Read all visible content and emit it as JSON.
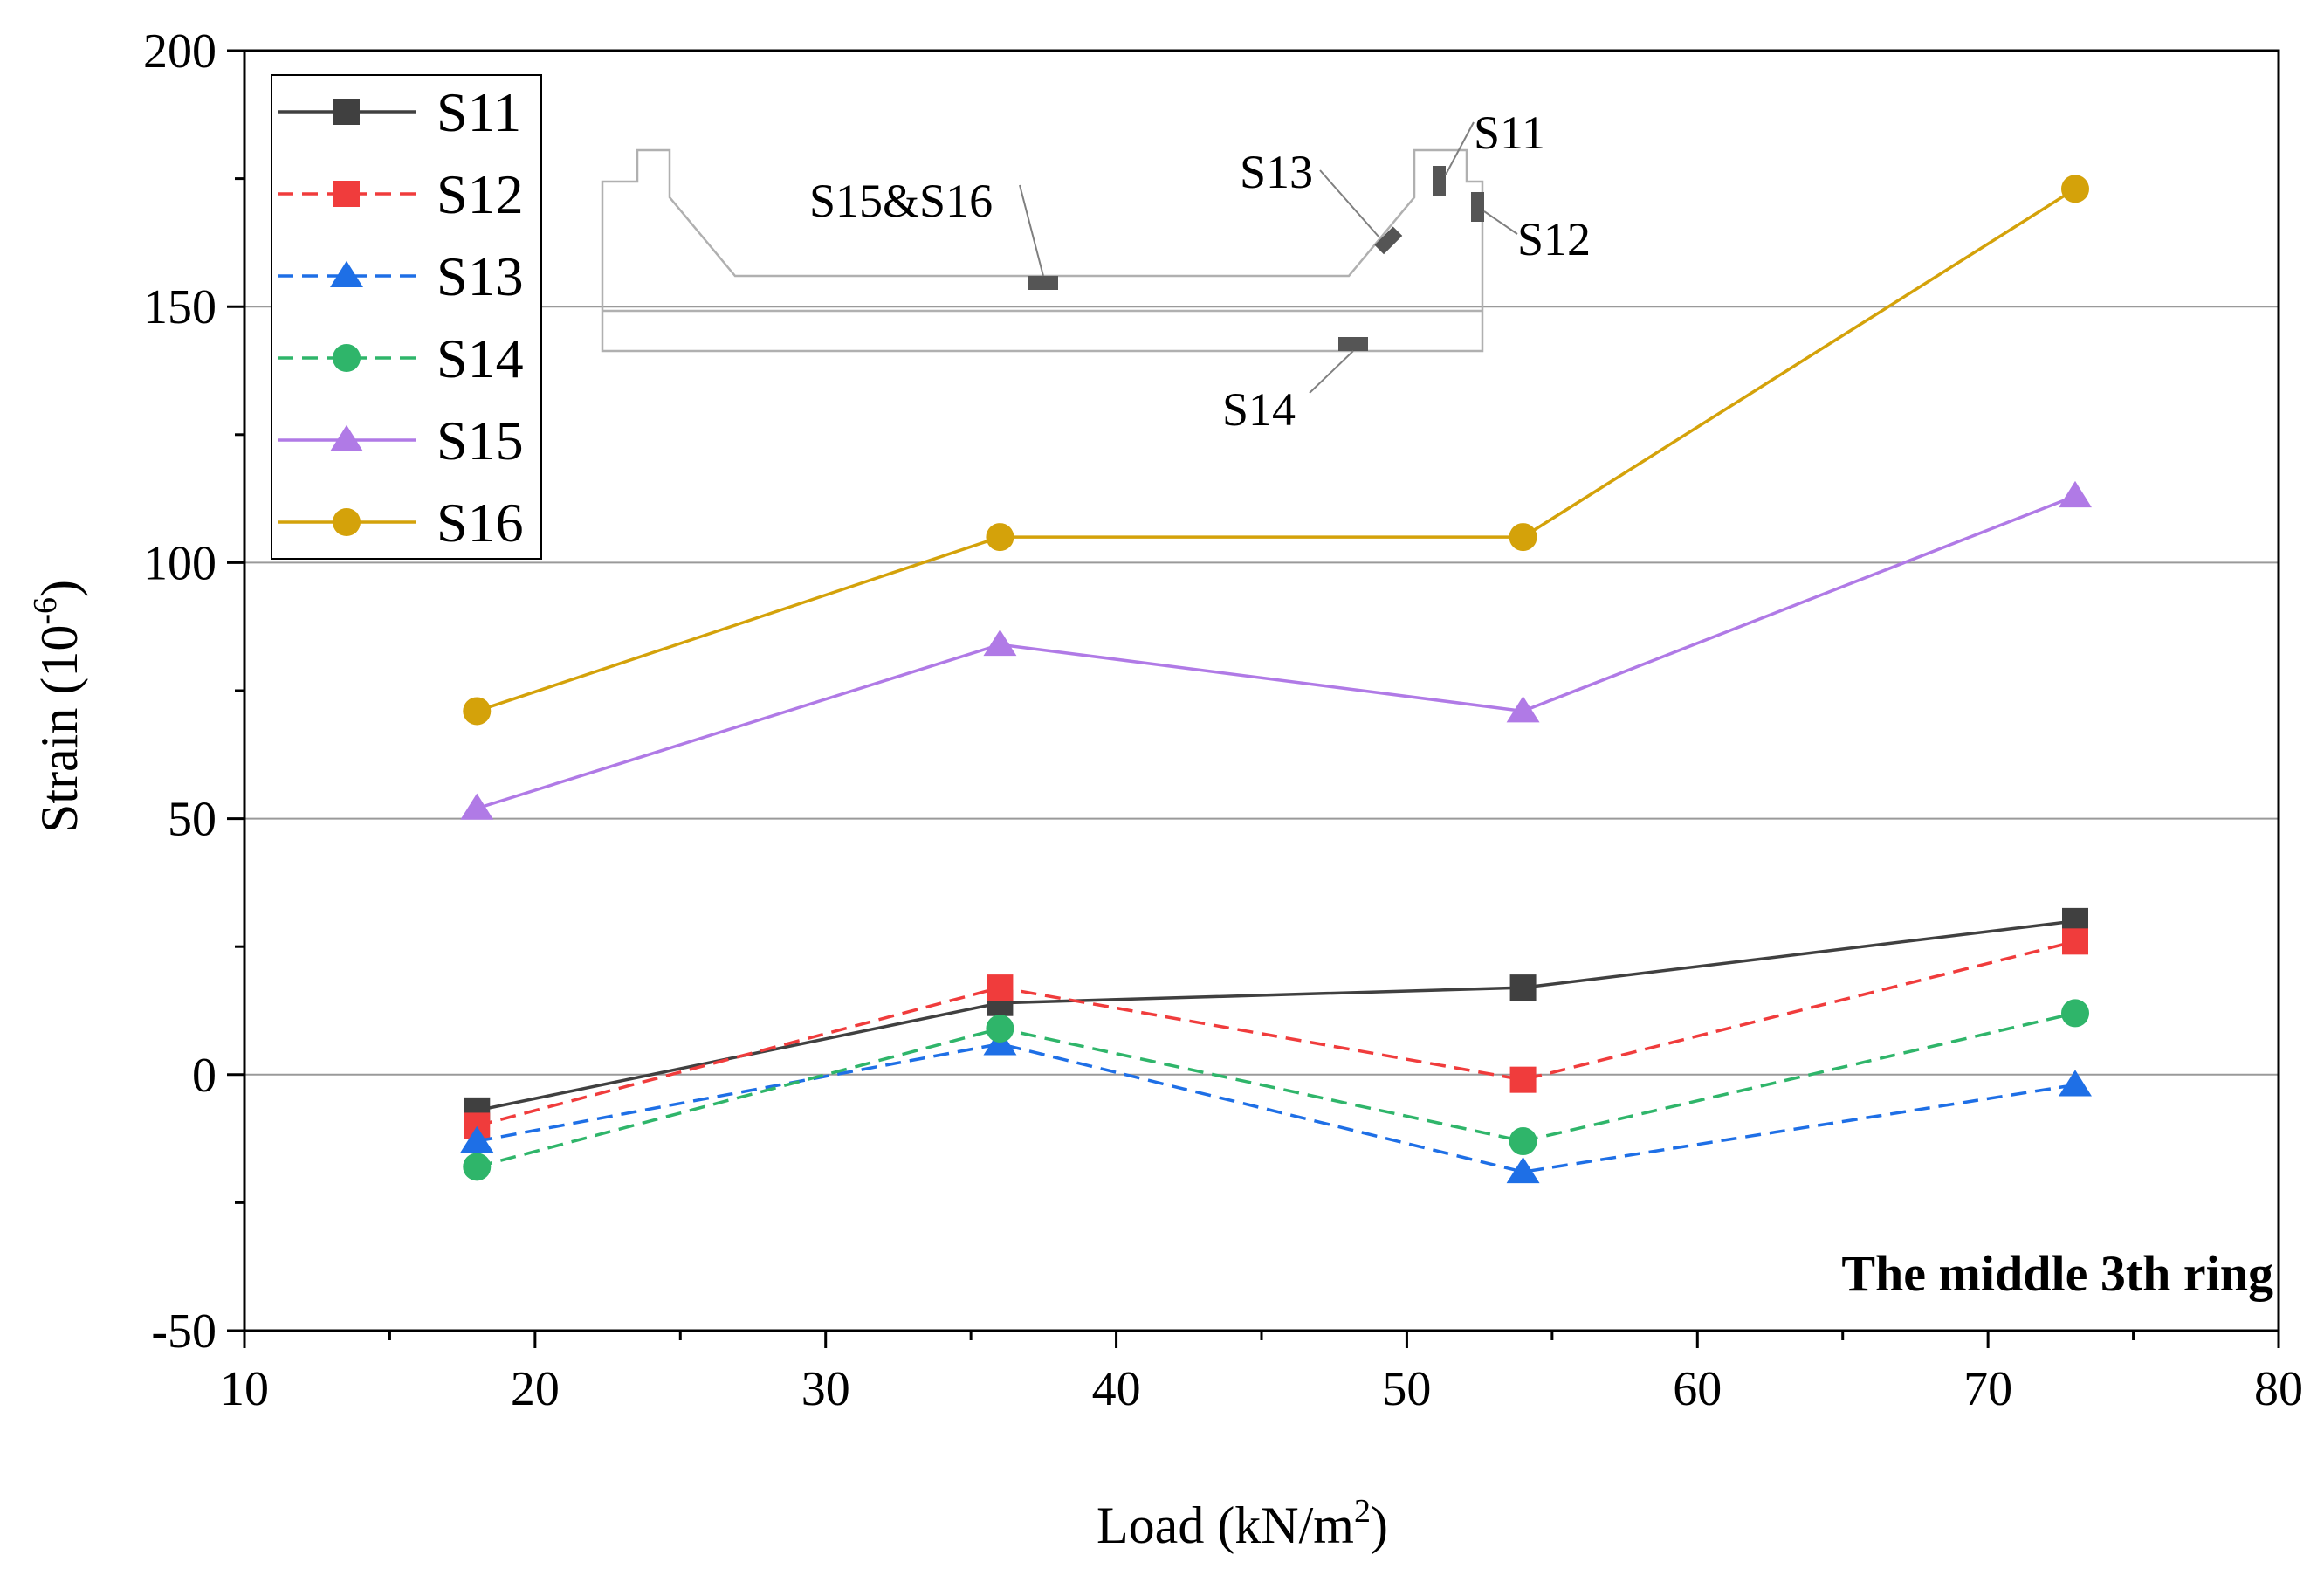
{
  "chart_data": {
    "type": "line",
    "title": "",
    "xlabel": "Load (kN/m",
    "xlabel_sup": "2",
    "xlabel_end": ")",
    "ylabel": "Strain (10",
    "ylabel_sup": "-6",
    "ylabel_end": ")",
    "xlim": [
      10,
      80
    ],
    "ylim": [
      -50,
      200
    ],
    "xticks": [
      10,
      20,
      30,
      40,
      50,
      60,
      70,
      80
    ],
    "yticks": [
      -50,
      0,
      50,
      100,
      150,
      200
    ],
    "gridlines_y": [
      0,
      50,
      100,
      150
    ],
    "annotation": "The middle 3th ring",
    "legend_position": "top-left",
    "x": [
      18,
      36,
      54,
      73
    ],
    "series": [
      {
        "name": "S11",
        "values": [
          -7,
          14,
          17,
          30
        ],
        "color": "#404040",
        "dash": "solid",
        "marker": "square"
      },
      {
        "name": "S12",
        "values": [
          -10,
          17,
          -1,
          26
        ],
        "color": "#f03c3c",
        "dash": "dashed",
        "marker": "square"
      },
      {
        "name": "S13",
        "values": [
          -13,
          6,
          -19,
          -2
        ],
        "color": "#1e6fe6",
        "dash": "dashed",
        "marker": "triangle"
      },
      {
        "name": "S14",
        "values": [
          -18,
          9,
          -13,
          12
        ],
        "color": "#2fb56a",
        "dash": "dashed",
        "marker": "circle"
      },
      {
        "name": "S15",
        "values": [
          52,
          84,
          71,
          113
        ],
        "color": "#b07ae6",
        "dash": "solid",
        "marker": "triangle"
      },
      {
        "name": "S16",
        "values": [
          71,
          105,
          105,
          173
        ],
        "color": "#d4a20a",
        "dash": "solid",
        "marker": "circle"
      }
    ],
    "inset_labels": {
      "s15s16": "S15&S16",
      "s13": "S13",
      "s11": "S11",
      "s12": "S12",
      "s14": "S14"
    }
  }
}
